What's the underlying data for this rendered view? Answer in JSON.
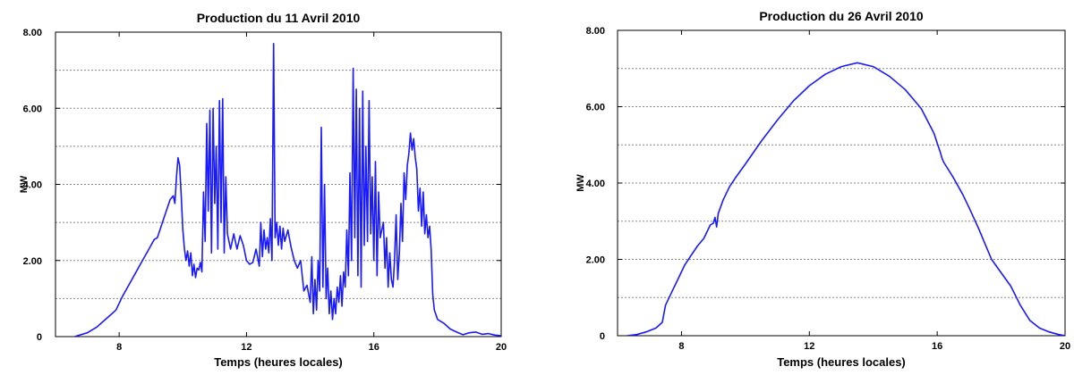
{
  "chart_data": [
    {
      "type": "line",
      "title": "Production du 11 Avril 2010",
      "xlabel": "Temps (heures locales)",
      "ylabel": "MW",
      "xlim": [
        6,
        20
      ],
      "ylim": [
        0,
        8
      ],
      "x_ticks": [
        8,
        12,
        16,
        20
      ],
      "x_tick_labels": [
        "8",
        "12",
        "16",
        "20"
      ],
      "y_ticks": [
        0,
        2,
        4,
        6,
        8
      ],
      "y_tick_labels": [
        "0",
        "2.00",
        "4.00",
        "6.00",
        "8.00"
      ],
      "grid": "horizontal dotted lines every 1 MW",
      "series": [
        {
          "color": "#1a1aff",
          "points": [
            [
              6.6,
              0
            ],
            [
              7.0,
              0.1
            ],
            [
              7.3,
              0.25
            ],
            [
              7.5,
              0.4
            ],
            [
              7.7,
              0.55
            ],
            [
              7.9,
              0.7
            ],
            [
              8.1,
              1.05
            ],
            [
              8.3,
              1.35
            ],
            [
              8.5,
              1.65
            ],
            [
              8.7,
              1.95
            ],
            [
              8.9,
              2.25
            ],
            [
              9.0,
              2.4
            ],
            [
              9.1,
              2.55
            ],
            [
              9.2,
              2.6
            ],
            [
              9.3,
              2.85
            ],
            [
              9.4,
              3.1
            ],
            [
              9.5,
              3.35
            ],
            [
              9.6,
              3.6
            ],
            [
              9.7,
              3.7
            ],
            [
              9.75,
              3.5
            ],
            [
              9.8,
              4.2
            ],
            [
              9.85,
              4.7
            ],
            [
              9.9,
              4.5
            ],
            [
              9.95,
              3.7
            ],
            [
              10.0,
              2.8
            ],
            [
              10.05,
              2.3
            ],
            [
              10.1,
              2.0
            ],
            [
              10.15,
              2.25
            ],
            [
              10.2,
              1.85
            ],
            [
              10.25,
              2.2
            ],
            [
              10.3,
              1.6
            ],
            [
              10.35,
              1.9
            ],
            [
              10.4,
              1.55
            ],
            [
              10.45,
              1.8
            ],
            [
              10.5,
              1.75
            ],
            [
              10.55,
              1.95
            ],
            [
              10.6,
              1.7
            ],
            [
              10.65,
              3.8
            ],
            [
              10.7,
              2.5
            ],
            [
              10.75,
              5.6
            ],
            [
              10.8,
              3.3
            ],
            [
              10.85,
              5.95
            ],
            [
              10.9,
              2.2
            ],
            [
              10.95,
              6.0
            ],
            [
              11.0,
              3.5
            ],
            [
              11.05,
              5.0
            ],
            [
              11.1,
              2.3
            ],
            [
              11.15,
              6.2
            ],
            [
              11.2,
              3.0
            ],
            [
              11.25,
              6.25
            ],
            [
              11.3,
              2.2
            ],
            [
              11.35,
              4.2
            ],
            [
              11.4,
              2.7
            ],
            [
              11.5,
              2.3
            ],
            [
              11.6,
              2.7
            ],
            [
              11.7,
              2.3
            ],
            [
              11.8,
              2.65
            ],
            [
              11.9,
              2.4
            ],
            [
              12.0,
              2.0
            ],
            [
              12.1,
              1.9
            ],
            [
              12.2,
              1.95
            ],
            [
              12.3,
              2.3
            ],
            [
              12.4,
              1.85
            ],
            [
              12.45,
              3.0
            ],
            [
              12.5,
              2.1
            ],
            [
              12.55,
              2.8
            ],
            [
              12.6,
              2.3
            ],
            [
              12.65,
              2.6
            ],
            [
              12.7,
              2.2
            ],
            [
              12.75,
              3.1
            ],
            [
              12.8,
              2.0
            ],
            [
              12.85,
              7.7
            ],
            [
              12.9,
              2.6
            ],
            [
              12.95,
              3.0
            ],
            [
              13.0,
              2.4
            ],
            [
              13.05,
              2.9
            ],
            [
              13.1,
              2.3
            ],
            [
              13.15,
              2.85
            ],
            [
              13.2,
              2.5
            ],
            [
              13.3,
              2.8
            ],
            [
              13.4,
              2.35
            ],
            [
              13.5,
              2.0
            ],
            [
              13.6,
              1.8
            ],
            [
              13.7,
              2.0
            ],
            [
              13.8,
              1.2
            ],
            [
              13.9,
              1.35
            ],
            [
              14.0,
              0.9
            ],
            [
              14.05,
              2.1
            ],
            [
              14.1,
              0.6
            ],
            [
              14.15,
              1.5
            ],
            [
              14.2,
              0.7
            ],
            [
              14.25,
              2.0
            ],
            [
              14.3,
              1.2
            ],
            [
              14.35,
              5.5
            ],
            [
              14.4,
              1.3
            ],
            [
              14.45,
              4.0
            ],
            [
              14.5,
              1.0
            ],
            [
              14.55,
              1.8
            ],
            [
              14.6,
              0.6
            ],
            [
              14.65,
              1.2
            ],
            [
              14.7,
              0.45
            ],
            [
              14.75,
              1.0
            ],
            [
              14.8,
              0.6
            ],
            [
              14.85,
              1.3
            ],
            [
              14.9,
              0.9
            ],
            [
              14.95,
              1.6
            ],
            [
              15.0,
              0.8
            ],
            [
              15.05,
              1.7
            ],
            [
              15.1,
              1.3
            ],
            [
              15.15,
              2.8
            ],
            [
              15.2,
              1.6
            ],
            [
              15.25,
              4.3
            ],
            [
              15.3,
              2.0
            ],
            [
              15.35,
              7.05
            ],
            [
              15.4,
              2.6
            ],
            [
              15.45,
              6.5
            ],
            [
              15.5,
              1.6
            ],
            [
              15.55,
              6.0
            ],
            [
              15.6,
              1.3
            ],
            [
              15.65,
              6.45
            ],
            [
              15.7,
              2.4
            ],
            [
              15.75,
              5.0
            ],
            [
              15.8,
              2.5
            ],
            [
              15.85,
              6.2
            ],
            [
              15.9,
              2.7
            ],
            [
              15.95,
              4.2
            ],
            [
              16.0,
              2.0
            ],
            [
              16.05,
              4.6
            ],
            [
              16.1,
              1.6
            ],
            [
              16.15,
              3.8
            ],
            [
              16.2,
              2.6
            ],
            [
              16.3,
              3.0
            ],
            [
              16.35,
              1.8
            ],
            [
              16.4,
              2.6
            ],
            [
              16.45,
              1.3
            ],
            [
              16.5,
              2.2
            ],
            [
              16.55,
              1.5
            ],
            [
              16.6,
              1.3
            ],
            [
              16.65,
              2.0
            ],
            [
              16.7,
              3.2
            ],
            [
              16.75,
              1.5
            ],
            [
              16.8,
              2.2
            ],
            [
              16.85,
              3.5
            ],
            [
              16.9,
              2.5
            ],
            [
              16.95,
              4.3
            ],
            [
              17.0,
              3.6
            ],
            [
              17.05,
              4.5
            ],
            [
              17.1,
              4.8
            ],
            [
              17.15,
              5.35
            ],
            [
              17.2,
              4.9
            ],
            [
              17.25,
              5.2
            ],
            [
              17.3,
              4.7
            ],
            [
              17.35,
              4.4
            ],
            [
              17.4,
              3.3
            ],
            [
              17.45,
              3.9
            ],
            [
              17.5,
              2.9
            ],
            [
              17.55,
              3.8
            ],
            [
              17.6,
              2.7
            ],
            [
              17.65,
              3.2
            ],
            [
              17.7,
              2.6
            ],
            [
              17.75,
              2.9
            ],
            [
              17.8,
              2.3
            ],
            [
              17.85,
              1.1
            ],
            [
              17.9,
              0.7
            ],
            [
              18.0,
              0.45
            ],
            [
              18.2,
              0.35
            ],
            [
              18.4,
              0.2
            ],
            [
              18.6,
              0.12
            ],
            [
              18.8,
              0.05
            ],
            [
              19.0,
              0.1
            ],
            [
              19.2,
              0.12
            ],
            [
              19.4,
              0.06
            ],
            [
              19.6,
              0.08
            ],
            [
              19.8,
              0.04
            ],
            [
              20.0,
              0.02
            ]
          ]
        }
      ]
    },
    {
      "type": "line",
      "title": "Production du 26 Avril 2010",
      "xlabel": "Temps (heures locales)",
      "ylabel": "MW",
      "xlim": [
        6,
        20
      ],
      "ylim": [
        0,
        8
      ],
      "x_ticks": [
        8,
        12,
        16,
        20
      ],
      "x_tick_labels": [
        "8",
        "12",
        "16",
        "20"
      ],
      "y_ticks": [
        0,
        2,
        4,
        6,
        8
      ],
      "y_tick_labels": [
        "0",
        "2.00",
        "4.00",
        "6.00",
        "8.00"
      ],
      "grid": "horizontal dotted lines every 1 MW",
      "series": [
        {
          "color": "#1a1aff",
          "points": [
            [
              6.3,
              0
            ],
            [
              6.6,
              0.03
            ],
            [
              6.9,
              0.1
            ],
            [
              7.2,
              0.2
            ],
            [
              7.4,
              0.35
            ],
            [
              7.5,
              0.8
            ],
            [
              7.7,
              1.15
            ],
            [
              7.9,
              1.5
            ],
            [
              8.1,
              1.85
            ],
            [
              8.3,
              2.1
            ],
            [
              8.5,
              2.35
            ],
            [
              8.7,
              2.55
            ],
            [
              8.9,
              2.9
            ],
            [
              9.0,
              2.95
            ],
            [
              9.05,
              3.1
            ],
            [
              9.1,
              2.85
            ],
            [
              9.15,
              3.2
            ],
            [
              9.3,
              3.55
            ],
            [
              9.5,
              3.9
            ],
            [
              9.7,
              4.15
            ],
            [
              10.0,
              4.5
            ],
            [
              10.5,
              5.1
            ],
            [
              11.0,
              5.65
            ],
            [
              11.5,
              6.15
            ],
            [
              12.0,
              6.55
            ],
            [
              12.5,
              6.85
            ],
            [
              13.0,
              7.05
            ],
            [
              13.5,
              7.15
            ],
            [
              14.0,
              7.05
            ],
            [
              14.5,
              6.8
            ],
            [
              15.0,
              6.45
            ],
            [
              15.5,
              5.95
            ],
            [
              15.9,
              5.3
            ],
            [
              16.0,
              5.05
            ],
            [
              16.1,
              4.8
            ],
            [
              16.15,
              4.65
            ],
            [
              16.2,
              4.55
            ],
            [
              16.5,
              4.15
            ],
            [
              16.8,
              3.7
            ],
            [
              17.0,
              3.35
            ],
            [
              17.3,
              2.8
            ],
            [
              17.5,
              2.4
            ],
            [
              17.7,
              2.0
            ],
            [
              18.0,
              1.65
            ],
            [
              18.3,
              1.3
            ],
            [
              18.6,
              0.8
            ],
            [
              18.9,
              0.4
            ],
            [
              19.2,
              0.2
            ],
            [
              19.5,
              0.1
            ],
            [
              19.8,
              0.03
            ],
            [
              20.0,
              0
            ]
          ]
        }
      ]
    }
  ]
}
